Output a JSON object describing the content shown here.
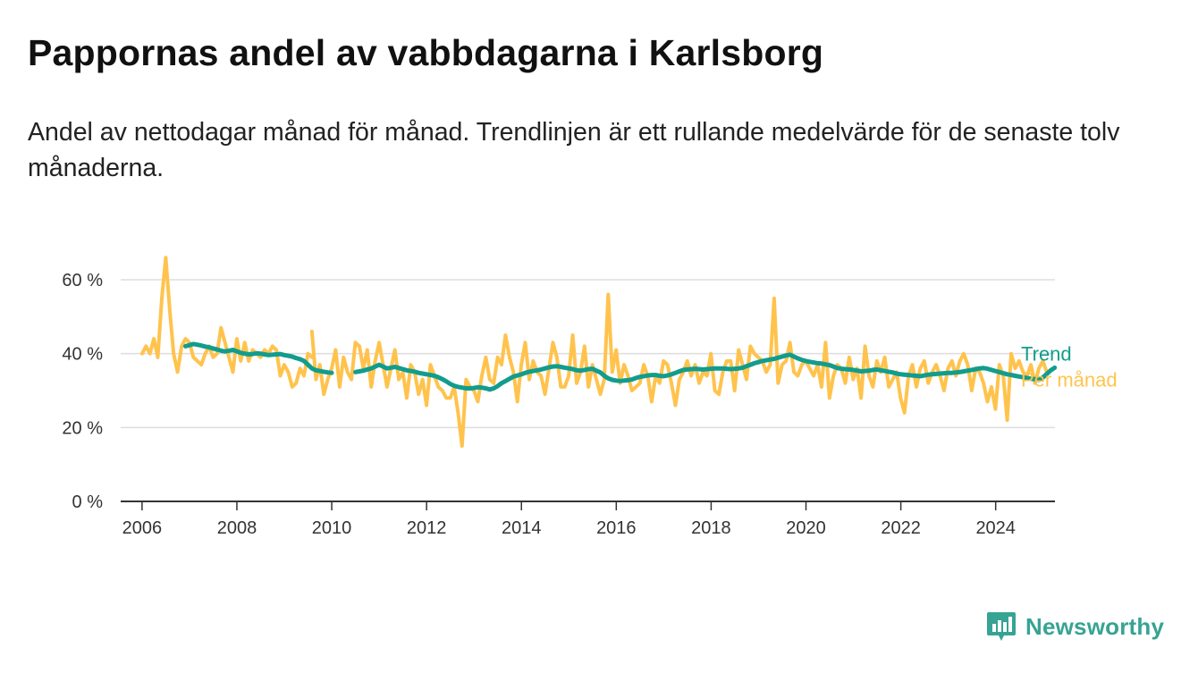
{
  "title": "Pappornas andel av vabbdagarna i Karlsborg",
  "subtitle": "Andel av nettodagar månad för månad. Trendlinjen är ett rullande medelvärde för de senaste tolv månaderna.",
  "brand": {
    "name": "Newsworthy",
    "color": "#37a393"
  },
  "chart_data": {
    "type": "line",
    "title": "Pappornas andel av vabbdagarna i Karlsborg",
    "subtitle": "Andel av nettodagar månad för månad. Trendlinjen är ett rullande medelvärde för de senaste tolv månaderna.",
    "xlabel": "",
    "ylabel": "",
    "x_range": [
      2005.55,
      2025.25
    ],
    "ylim": [
      0,
      60
    ],
    "y_ticks": [
      0,
      20,
      40,
      60
    ],
    "y_tick_labels": [
      "0 %",
      "20 %",
      "40 %",
      "60 %"
    ],
    "x_ticks": [
      2006,
      2008,
      2010,
      2012,
      2014,
      2016,
      2018,
      2020,
      2022,
      2024
    ],
    "x_tick_labels": [
      "2006",
      "2008",
      "2010",
      "2012",
      "2014",
      "2016",
      "2018",
      "2020",
      "2022",
      "2024"
    ],
    "grid": "horizontal",
    "legend": "right-end",
    "series": [
      {
        "name": "Per månad",
        "color": "#ffc34d",
        "segments": [
          {
            "x_start": 2006.0,
            "step": 0.0833,
            "values": [
              40,
              42,
              40,
              44,
              39,
              55,
              66,
              52,
              40,
              35,
              42,
              44,
              43,
              39,
              38,
              37,
              40,
              42,
              39,
              40,
              47,
              43,
              39,
              35,
              44,
              38,
              43,
              38,
              41,
              40,
              39,
              41,
              40,
              42,
              41,
              34,
              37,
              35,
              31,
              32,
              36,
              34,
              40,
              39
            ]
          },
          {
            "x_start": 2009.583,
            "step": 0.0833,
            "values": [
              46,
              33,
              37,
              29,
              33,
              36,
              41,
              31,
              39,
              35,
              33,
              43,
              42,
              36,
              41,
              31,
              38,
              43,
              37,
              31,
              36,
              41,
              33,
              35,
              28,
              37,
              35,
              29,
              33,
              26,
              37,
              34,
              31,
              30,
              28,
              28,
              31,
              24,
              15,
              33,
              31,
              30,
              27,
              34,
              39,
              33,
              32,
              39,
              37,
              45,
              39,
              35,
              27,
              37,
              43,
              33,
              38,
              35,
              34,
              29,
              36,
              43,
              39,
              31,
              31,
              34,
              45,
              32,
              35,
              42,
              31,
              37,
              33,
              29,
              33,
              56,
              35,
              41,
              32,
              37,
              34,
              30,
              31,
              32,
              37,
              34,
              27,
              34,
              32,
              38,
              37,
              32,
              26,
              33,
              35,
              38,
              34,
              37,
              32,
              35,
              34,
              40,
              30,
              29,
              35,
              38,
              38,
              30,
              41,
              37,
              33,
              42,
              40,
              39,
              38,
              35,
              37,
              55,
              32,
              37,
              38,
              43,
              35,
              34,
              37,
              38,
              36,
              34,
              37,
              31,
              43,
              28,
              34,
              37,
              36,
              32,
              39,
              33,
              36,
              28,
              42,
              34,
              31,
              38,
              35,
              39,
              31,
              33,
              35,
              28,
              24,
              34,
              37,
              31,
              36,
              38,
              32,
              35,
              37,
              34,
              30,
              36,
              38,
              34,
              38,
              40,
              37,
              30,
              36,
              35,
              32,
              27,
              31,
              25,
              37,
              34,
              22,
              40,
              36,
              38,
              35,
              34,
              37,
              32,
              36,
              38,
              35
            ]
          }
        ]
      },
      {
        "name": "Trend",
        "color": "#129c8d",
        "segments": [
          {
            "x_start": 2006.917,
            "step": 0.0833,
            "values": [
              42,
              42.3,
              42.6,
              42.4,
              42.2,
              41.9,
              41.7,
              41.4,
              41.1,
              40.8,
              40.6,
              40.8,
              41,
              40.6,
              40.2,
              40,
              39.8,
              39.9,
              40.1,
              40,
              39.8,
              39.6,
              39.7,
              39.8,
              39.9,
              39.6,
              39.4,
              39.2,
              38.8,
              38.5,
              38,
              37,
              36,
              35.5,
              35.3,
              35.1,
              34.9,
              34.8
            ]
          },
          {
            "x_start": 2010.5,
            "step": 0.0833,
            "values": [
              35,
              35.2,
              35.4,
              35.7,
              36,
              36.5,
              37,
              36.5,
              36,
              36.2,
              36.4,
              36.1,
              35.8,
              35.5,
              35.3,
              35.1,
              34.8,
              34.6,
              34.4,
              34.2,
              34,
              33.6,
              33.1,
              32.5,
              31.8,
              31.3,
              31,
              30.8,
              30.6,
              30.6,
              30.7,
              30.9,
              30.8,
              30.6,
              30.3,
              30.6,
              31.2,
              32,
              32.6,
              33.2,
              33.8,
              34.1,
              34.4,
              34.8,
              35.1,
              35.3,
              35.5,
              35.7,
              36,
              36.3,
              36.5,
              36.6,
              36.4,
              36.2,
              36,
              35.8,
              35.5,
              35.4,
              35.6,
              35.8,
              35.9,
              35.4,
              34.9,
              34,
              33.3,
              32.9,
              32.7,
              32.6,
              32.7,
              32.8,
              33,
              33.4,
              33.7,
              33.9,
              34.1,
              34.2,
              34.2,
              34,
              33.9,
              34.1,
              34.4,
              34.8,
              35.2,
              35.6,
              35.7,
              35.8,
              35.9,
              35.8,
              35.7,
              35.8,
              35.9,
              36,
              36,
              36,
              35.9,
              35.8,
              35.9,
              36,
              36.2,
              36.6,
              37,
              37.4,
              37.7,
              38,
              38.2,
              38.4,
              38.6,
              38.9,
              39.2,
              39.5,
              39.7,
              39.2,
              38.7,
              38.3,
              38,
              37.8,
              37.6,
              37.4,
              37.3,
              37.1,
              36.9,
              36.5,
              36.1,
              35.9,
              35.8,
              35.7,
              35.6,
              35.4,
              35.2,
              35.3,
              35.4,
              35.6,
              35.7,
              35.5,
              35.3,
              35.1,
              34.9,
              34.6,
              34.4,
              34.3,
              34.2,
              34.1,
              34,
              33.9,
              34.1,
              34.3,
              34.4,
              34.5,
              34.6,
              34.7,
              34.8,
              34.8,
              34.9,
              35,
              35.2,
              35.4,
              35.6,
              35.8,
              36,
              36.1,
              35.9,
              35.6,
              35.3,
              35,
              34.7,
              34.4,
              34.2,
              34,
              33.8,
              33.6,
              33.4,
              33.2,
              33.1,
              32.9,
              33.5,
              34.5,
              35.5,
              36.2
            ]
          }
        ]
      }
    ]
  }
}
